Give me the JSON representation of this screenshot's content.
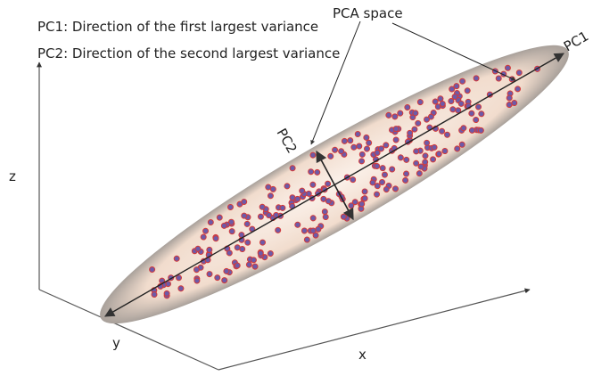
{
  "legend": [
    "PC1: Direction of the first largest variance",
    "PC2: Direction of the second largest variance"
  ],
  "labels": {
    "pca_space": "PCA space",
    "pc1": "PC1",
    "pc2": "PC2",
    "x": "x",
    "y": "y",
    "z": "z"
  }
}
